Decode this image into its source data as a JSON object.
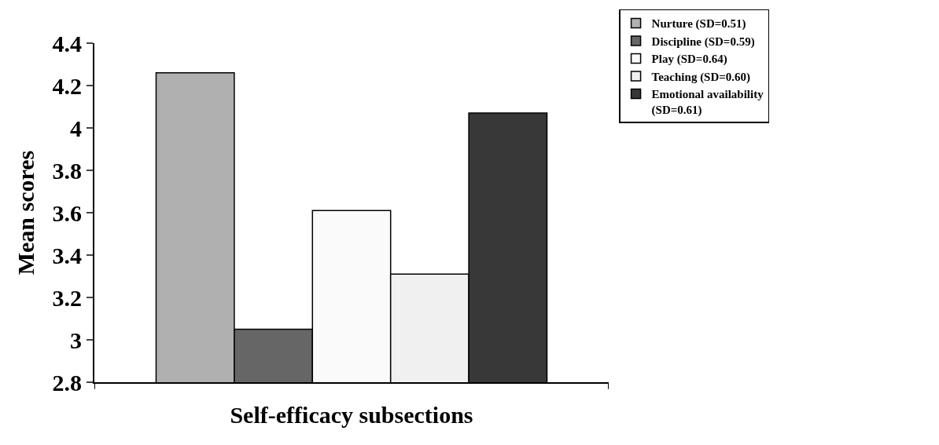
{
  "chart_data": {
    "type": "bar",
    "xlabel": "Self-efficacy subsections",
    "ylabel": "Mean scores",
    "categories": [
      null
    ],
    "series": [
      {
        "name": "Nurture (SD=0.51)",
        "color": "#b0b0b0",
        "values": [
          4.26
        ]
      },
      {
        "name": "Discipline (SD=0.59)",
        "color": "#666666",
        "values": [
          3.05
        ]
      },
      {
        "name": "Play (SD=0.64)",
        "color": "#fafafa",
        "values": [
          3.61
        ]
      },
      {
        "name": "Teaching (SD=0.60)",
        "color": "#f0f0f0",
        "values": [
          3.31
        ]
      },
      {
        "name": "Emotional availability (SD=0.61)",
        "color": "#383838",
        "values": [
          4.07
        ]
      }
    ],
    "ylim": [
      2.8,
      4.4
    ],
    "yticks": [
      2.8,
      3,
      3.2,
      3.4,
      3.6,
      3.8,
      4,
      4.2,
      4.4
    ],
    "grid": false,
    "legend": "right",
    "tick_labels": "y"
  }
}
